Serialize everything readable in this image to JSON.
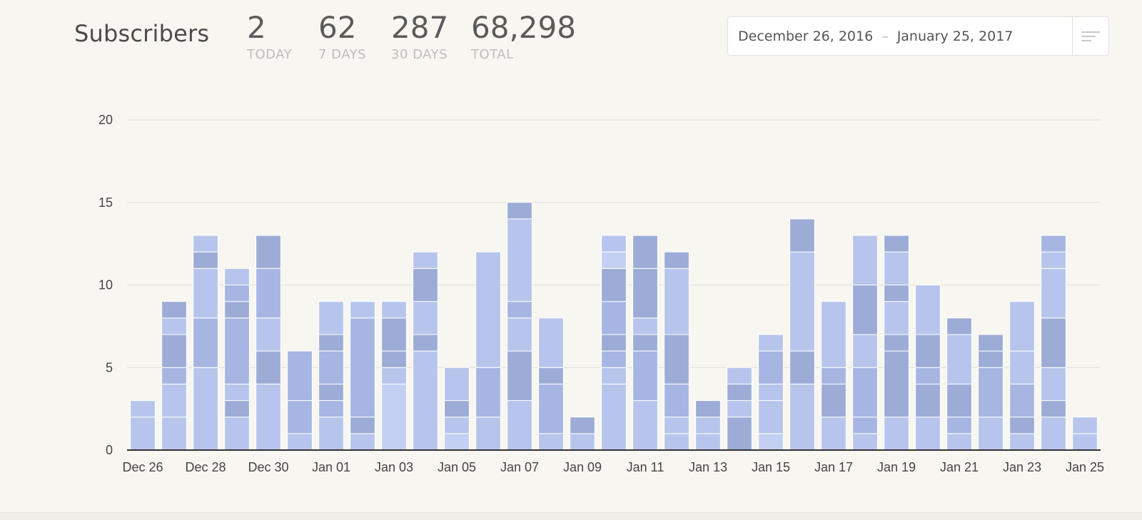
{
  "header": {
    "title": "Subscribers",
    "stats": [
      {
        "value": "2",
        "label": "TODAY"
      },
      {
        "value": "62",
        "label": "7 DAYS"
      },
      {
        "value": "287",
        "label": "30 DAYS"
      },
      {
        "value": "68,298",
        "label": "TOTAL"
      }
    ]
  },
  "date_range": {
    "start": "December 26, 2016",
    "separator": "–",
    "end": "January 25, 2017",
    "filter_icon": "filter-lines-icon"
  },
  "colors": {
    "light": "#b7c5ec",
    "mid": "#a6b5e2",
    "dark": "#9dacd6",
    "pale": "#c3d0f4",
    "grid": "#dedcd7",
    "axis": "#333333"
  },
  "chart_data": {
    "type": "bar",
    "stacked": true,
    "ylim": [
      0,
      20
    ],
    "yticks": [
      0,
      5,
      10,
      15,
      20
    ],
    "grid": true,
    "categories": [
      "Dec 26",
      "Dec 27",
      "Dec 28",
      "Dec 29",
      "Dec 30",
      "Dec 31",
      "Jan 01",
      "Jan 02",
      "Jan 03",
      "Jan 04",
      "Jan 05",
      "Jan 06",
      "Jan 07",
      "Jan 08",
      "Jan 09",
      "Jan 10",
      "Jan 11",
      "Jan 12",
      "Jan 13",
      "Jan 14",
      "Jan 15",
      "Jan 16",
      "Jan 17",
      "Jan 18",
      "Jan 19",
      "Jan 20",
      "Jan 21",
      "Jan 22",
      "Jan 23",
      "Jan 24",
      "Jan 25"
    ],
    "xtick_labels": [
      "Dec 26",
      "Dec 28",
      "Dec 30",
      "Jan 01",
      "Jan 03",
      "Jan 05",
      "Jan 07",
      "Jan 09",
      "Jan 11",
      "Jan 13",
      "Jan 15",
      "Jan 17",
      "Jan 19",
      "Jan 21",
      "Jan 23",
      "Jan 25"
    ],
    "totals": [
      3,
      9,
      13,
      11,
      13,
      6,
      9,
      9,
      9,
      12,
      5,
      12,
      15,
      8,
      2,
      13,
      13,
      12,
      3,
      5,
      7,
      14,
      9,
      13,
      13,
      10,
      8,
      7,
      9,
      13,
      2
    ],
    "segments": [
      [
        2,
        1
      ],
      [
        2,
        2,
        1,
        2,
        1,
        1
      ],
      [
        5,
        3,
        3,
        1,
        1
      ],
      [
        2,
        1,
        1,
        4,
        1,
        1,
        1
      ],
      [
        4,
        2,
        2,
        3,
        2
      ],
      [
        1,
        2,
        3
      ],
      [
        2,
        1,
        1,
        2,
        1,
        2
      ],
      [
        1,
        1,
        6,
        1
      ],
      [
        4,
        1,
        1,
        2,
        1
      ],
      [
        6,
        1,
        2,
        2,
        1
      ],
      [
        1,
        1,
        1,
        2
      ],
      [
        2,
        3,
        7
      ],
      [
        3,
        3,
        2,
        1,
        5,
        1
      ],
      [
        1,
        3,
        1,
        3
      ],
      [
        1,
        1
      ],
      [
        4,
        1,
        1,
        1,
        2,
        2,
        1,
        1
      ],
      [
        3,
        3,
        1,
        1,
        3,
        2
      ],
      [
        1,
        1,
        2,
        3,
        4,
        1
      ],
      [
        1,
        1,
        1
      ],
      [
        2,
        1,
        1,
        1
      ],
      [
        1,
        2,
        1,
        2,
        1
      ],
      [
        4,
        2,
        6,
        2
      ],
      [
        2,
        2,
        1,
        4
      ],
      [
        1,
        1,
        3,
        2,
        3,
        3
      ],
      [
        2,
        4,
        1,
        2,
        1,
        2,
        1
      ],
      [
        2,
        2,
        1,
        2,
        3
      ],
      [
        1,
        1,
        2,
        3,
        1
      ],
      [
        2,
        3,
        1,
        1
      ],
      [
        1,
        1,
        2,
        2,
        3
      ],
      [
        2,
        1,
        2,
        3,
        3,
        1,
        1
      ],
      [
        1,
        1
      ]
    ],
    "segment_shades": [
      [
        "light",
        "light"
      ],
      [
        "light",
        "light",
        "mid",
        "dark",
        "light",
        "dark"
      ],
      [
        "light",
        "mid",
        "light",
        "dark",
        "light"
      ],
      [
        "light",
        "dark",
        "light",
        "mid",
        "dark",
        "mid",
        "light"
      ],
      [
        "light",
        "dark",
        "light",
        "mid",
        "dark"
      ],
      [
        "light",
        "mid",
        "mid"
      ],
      [
        "light",
        "mid",
        "dark",
        "mid",
        "dark",
        "light"
      ],
      [
        "light",
        "dark",
        "mid",
        "light"
      ],
      [
        "pale",
        "light",
        "dark",
        "dark",
        "light"
      ],
      [
        "light",
        "dark",
        "light",
        "dark",
        "light"
      ],
      [
        "pale",
        "light",
        "dark",
        "light"
      ],
      [
        "light",
        "mid",
        "light"
      ],
      [
        "light",
        "dark",
        "light",
        "mid",
        "light",
        "dark"
      ],
      [
        "light",
        "mid",
        "dark",
        "light"
      ],
      [
        "light",
        "dark"
      ],
      [
        "light",
        "light",
        "mid",
        "dark",
        "mid",
        "dark",
        "pale",
        "light"
      ],
      [
        "light",
        "mid",
        "dark",
        "light",
        "dark",
        "dark"
      ],
      [
        "light",
        "light",
        "mid",
        "dark",
        "light",
        "dark"
      ],
      [
        "light",
        "light",
        "dark"
      ],
      [
        "dark",
        "light",
        "dark",
        "light"
      ],
      [
        "pale",
        "light",
        "light",
        "mid",
        "light"
      ],
      [
        "light",
        "dark",
        "light",
        "dark"
      ],
      [
        "light",
        "dark",
        "mid",
        "light"
      ],
      [
        "light",
        "mid",
        "mid",
        "light",
        "dark",
        "light"
      ],
      [
        "light",
        "dark",
        "dark",
        "light",
        "dark",
        "light",
        "dark"
      ],
      [
        "light",
        "dark",
        "mid",
        "dark",
        "light"
      ],
      [
        "light",
        "mid",
        "dark",
        "light",
        "dark"
      ],
      [
        "light",
        "mid",
        "dark",
        "dark"
      ],
      [
        "light",
        "dark",
        "mid",
        "light",
        "light"
      ],
      [
        "light",
        "dark",
        "light",
        "dark",
        "light",
        "light",
        "mid"
      ],
      [
        "light",
        "light"
      ]
    ]
  }
}
